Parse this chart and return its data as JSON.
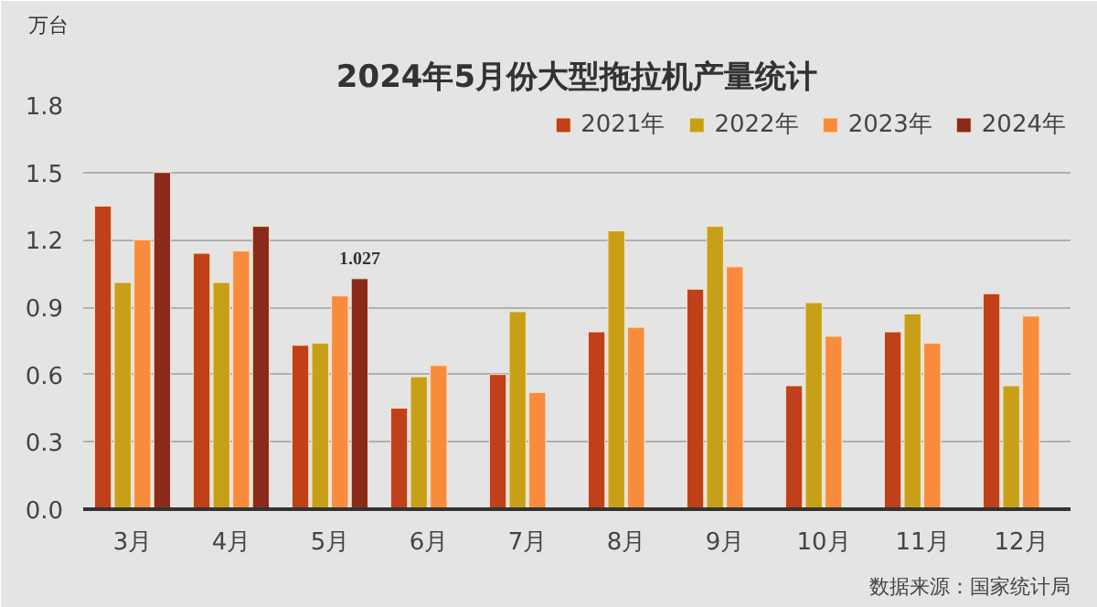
{
  "chart_data": {
    "type": "bar",
    "title": "2024年5月份大型拖拉机产量统计",
    "ylabel": "万台",
    "categories": [
      "3月",
      "4月",
      "5月",
      "6月",
      "7月",
      "8月",
      "9月",
      "10月",
      "11月",
      "12月"
    ],
    "series": [
      {
        "name": "2021年",
        "color": "#c0401a",
        "values": [
          1.35,
          1.14,
          0.73,
          0.45,
          0.6,
          0.79,
          0.98,
          0.55,
          0.79,
          0.96
        ]
      },
      {
        "name": "2022年",
        "color": "#c8a018",
        "values": [
          1.01,
          1.01,
          0.74,
          0.59,
          0.88,
          1.24,
          1.26,
          0.92,
          0.87,
          0.55
        ]
      },
      {
        "name": "2023年",
        "color": "#f98c3c",
        "values": [
          1.2,
          1.15,
          0.95,
          0.64,
          0.52,
          0.81,
          1.08,
          0.77,
          0.74,
          0.86
        ]
      },
      {
        "name": "2024年",
        "color": "#8b2a1a",
        "values": [
          1.5,
          1.26,
          1.027,
          null,
          null,
          null,
          null,
          null,
          null,
          null
        ],
        "value_labels": [
          null,
          null,
          "1.027",
          null,
          null,
          null,
          null,
          null,
          null,
          null
        ]
      }
    ],
    "ylim": [
      0,
      1.8
    ],
    "yticks": [
      {
        "value": 0,
        "label": "0.0"
      },
      {
        "value": 0.3,
        "label": "0.3"
      },
      {
        "value": 0.6,
        "label": "0.6"
      },
      {
        "value": 0.9,
        "label": "0.9"
      },
      {
        "value": 1.2,
        "label": "1.2"
      },
      {
        "value": 1.5,
        "label": "1.5"
      },
      {
        "value": 1.8,
        "label": "1.8"
      }
    ],
    "grid": "y",
    "legend": "top right",
    "annotations": [
      "数据来源：国家统计局"
    ]
  }
}
